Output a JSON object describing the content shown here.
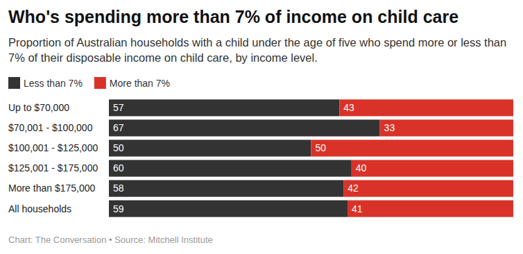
{
  "chart_data": {
    "type": "bar",
    "orientation": "horizontal",
    "stacked": true,
    "data_labels": true,
    "tick_labels": "y",
    "legend": "top",
    "title": "Who's spending more than 7% of income on child care",
    "subtitle": "Proportion of Australian households with a child under the age of five who spend more or less than 7% of their disposable income on child care, by income level.",
    "caption": "Chart: The Conversation • Source: Mitchell Institute",
    "categories": [
      "Up to $70,000",
      "$70,001 - $100,000",
      "$100,001 - $125,000",
      "$125,001 - $175,000",
      "More than $175,000",
      "All households"
    ],
    "series": [
      {
        "name": "Less than 7%",
        "color": "#333333",
        "values": [
          57,
          67,
          50,
          60,
          58,
          59
        ]
      },
      {
        "name": "More than 7%",
        "color": "#d93228",
        "values": [
          43,
          33,
          50,
          40,
          42,
          41
        ]
      }
    ],
    "xlim": [
      0,
      100
    ]
  }
}
